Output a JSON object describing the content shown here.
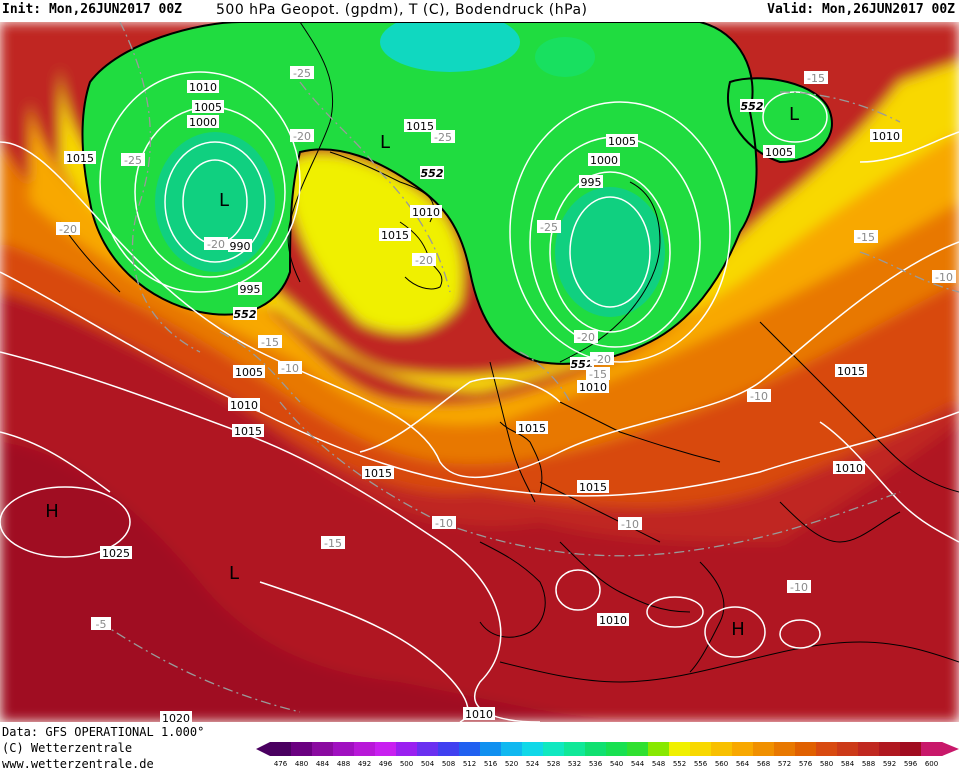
{
  "header": {
    "init": "Init: Mon,26JUN2017 00Z",
    "title": "500 hPa Geopot. (gpdm), T (C), Bodendruck (hPa)",
    "valid": "Valid: Mon,26JUN2017 00Z"
  },
  "footer": {
    "data_line": "Data: GFS OPERATIONAL 1.000°",
    "copyright": "(C) Wetterzentrale",
    "website": "www.wetterzentrale.de"
  },
  "legend": {
    "ticks": [
      "476",
      "480",
      "484",
      "488",
      "492",
      "496",
      "500",
      "504",
      "508",
      "512",
      "516",
      "520",
      "524",
      "528",
      "532",
      "536",
      "540",
      "544",
      "548",
      "552",
      "556",
      "560",
      "564",
      "568",
      "572",
      "576",
      "580",
      "584",
      "588",
      "592",
      "596",
      "600"
    ],
    "colors": [
      "#4a0060",
      "#6a0080",
      "#8a0aa0",
      "#a010c0",
      "#b818d8",
      "#c820f0",
      "#9a20f0",
      "#6a30f0",
      "#4040f0",
      "#2060f0",
      "#1090f0",
      "#10b8f0",
      "#10d8e8",
      "#10e8c0",
      "#10e898",
      "#10e070",
      "#18e050",
      "#30e030",
      "#88e800",
      "#f0f000",
      "#f8d800",
      "#f8c000",
      "#f8a800",
      "#f09000",
      "#e87800",
      "#e06000",
      "#d84a10",
      "#cc3a18",
      "#c02820",
      "#b01820",
      "#a00c20",
      "#c8186a"
    ]
  },
  "map": {
    "geopotential_labels": [
      {
        "text": "552"
      },
      {
        "text": "552"
      },
      {
        "text": "552"
      },
      {
        "text": "552"
      }
    ],
    "pressure_labels": [
      {
        "text": "1010"
      },
      {
        "text": "1005"
      },
      {
        "text": "1000"
      },
      {
        "text": "1015"
      },
      {
        "text": "990"
      },
      {
        "text": "995"
      },
      {
        "text": "1015"
      },
      {
        "text": "1010"
      },
      {
        "text": "1015"
      },
      {
        "text": "1005"
      },
      {
        "text": "1000"
      },
      {
        "text": "995"
      },
      {
        "text": "1010"
      },
      {
        "text": "1005"
      },
      {
        "text": "1010"
      },
      {
        "text": "1005"
      },
      {
        "text": "1010"
      },
      {
        "text": "1015"
      },
      {
        "text": "1015"
      },
      {
        "text": "1015"
      },
      {
        "text": "1010"
      },
      {
        "text": "1015"
      },
      {
        "text": "1025"
      },
      {
        "text": "1015"
      },
      {
        "text": "1010"
      },
      {
        "text": "1020"
      },
      {
        "text": "1010"
      }
    ],
    "temperature_labels": [
      {
        "text": "-25"
      },
      {
        "text": "-25"
      },
      {
        "text": "-20"
      },
      {
        "text": "-25"
      },
      {
        "text": "-20"
      },
      {
        "text": "-20"
      },
      {
        "text": "-20"
      },
      {
        "text": "-15"
      },
      {
        "text": "-10"
      },
      {
        "text": "-25"
      },
      {
        "text": "-20"
      },
      {
        "text": "-20"
      },
      {
        "text": "-15"
      },
      {
        "text": "-15"
      },
      {
        "text": "-15"
      },
      {
        "text": "-10"
      },
      {
        "text": "-10"
      },
      {
        "text": "-10"
      },
      {
        "text": "-10"
      },
      {
        "text": "-15"
      },
      {
        "text": "-10"
      },
      {
        "text": "-5"
      }
    ],
    "pressure_centers": [
      {
        "text": "L"
      },
      {
        "text": "L"
      },
      {
        "text": "L"
      },
      {
        "text": "H"
      },
      {
        "text": "L"
      },
      {
        "text": "H"
      }
    ]
  }
}
